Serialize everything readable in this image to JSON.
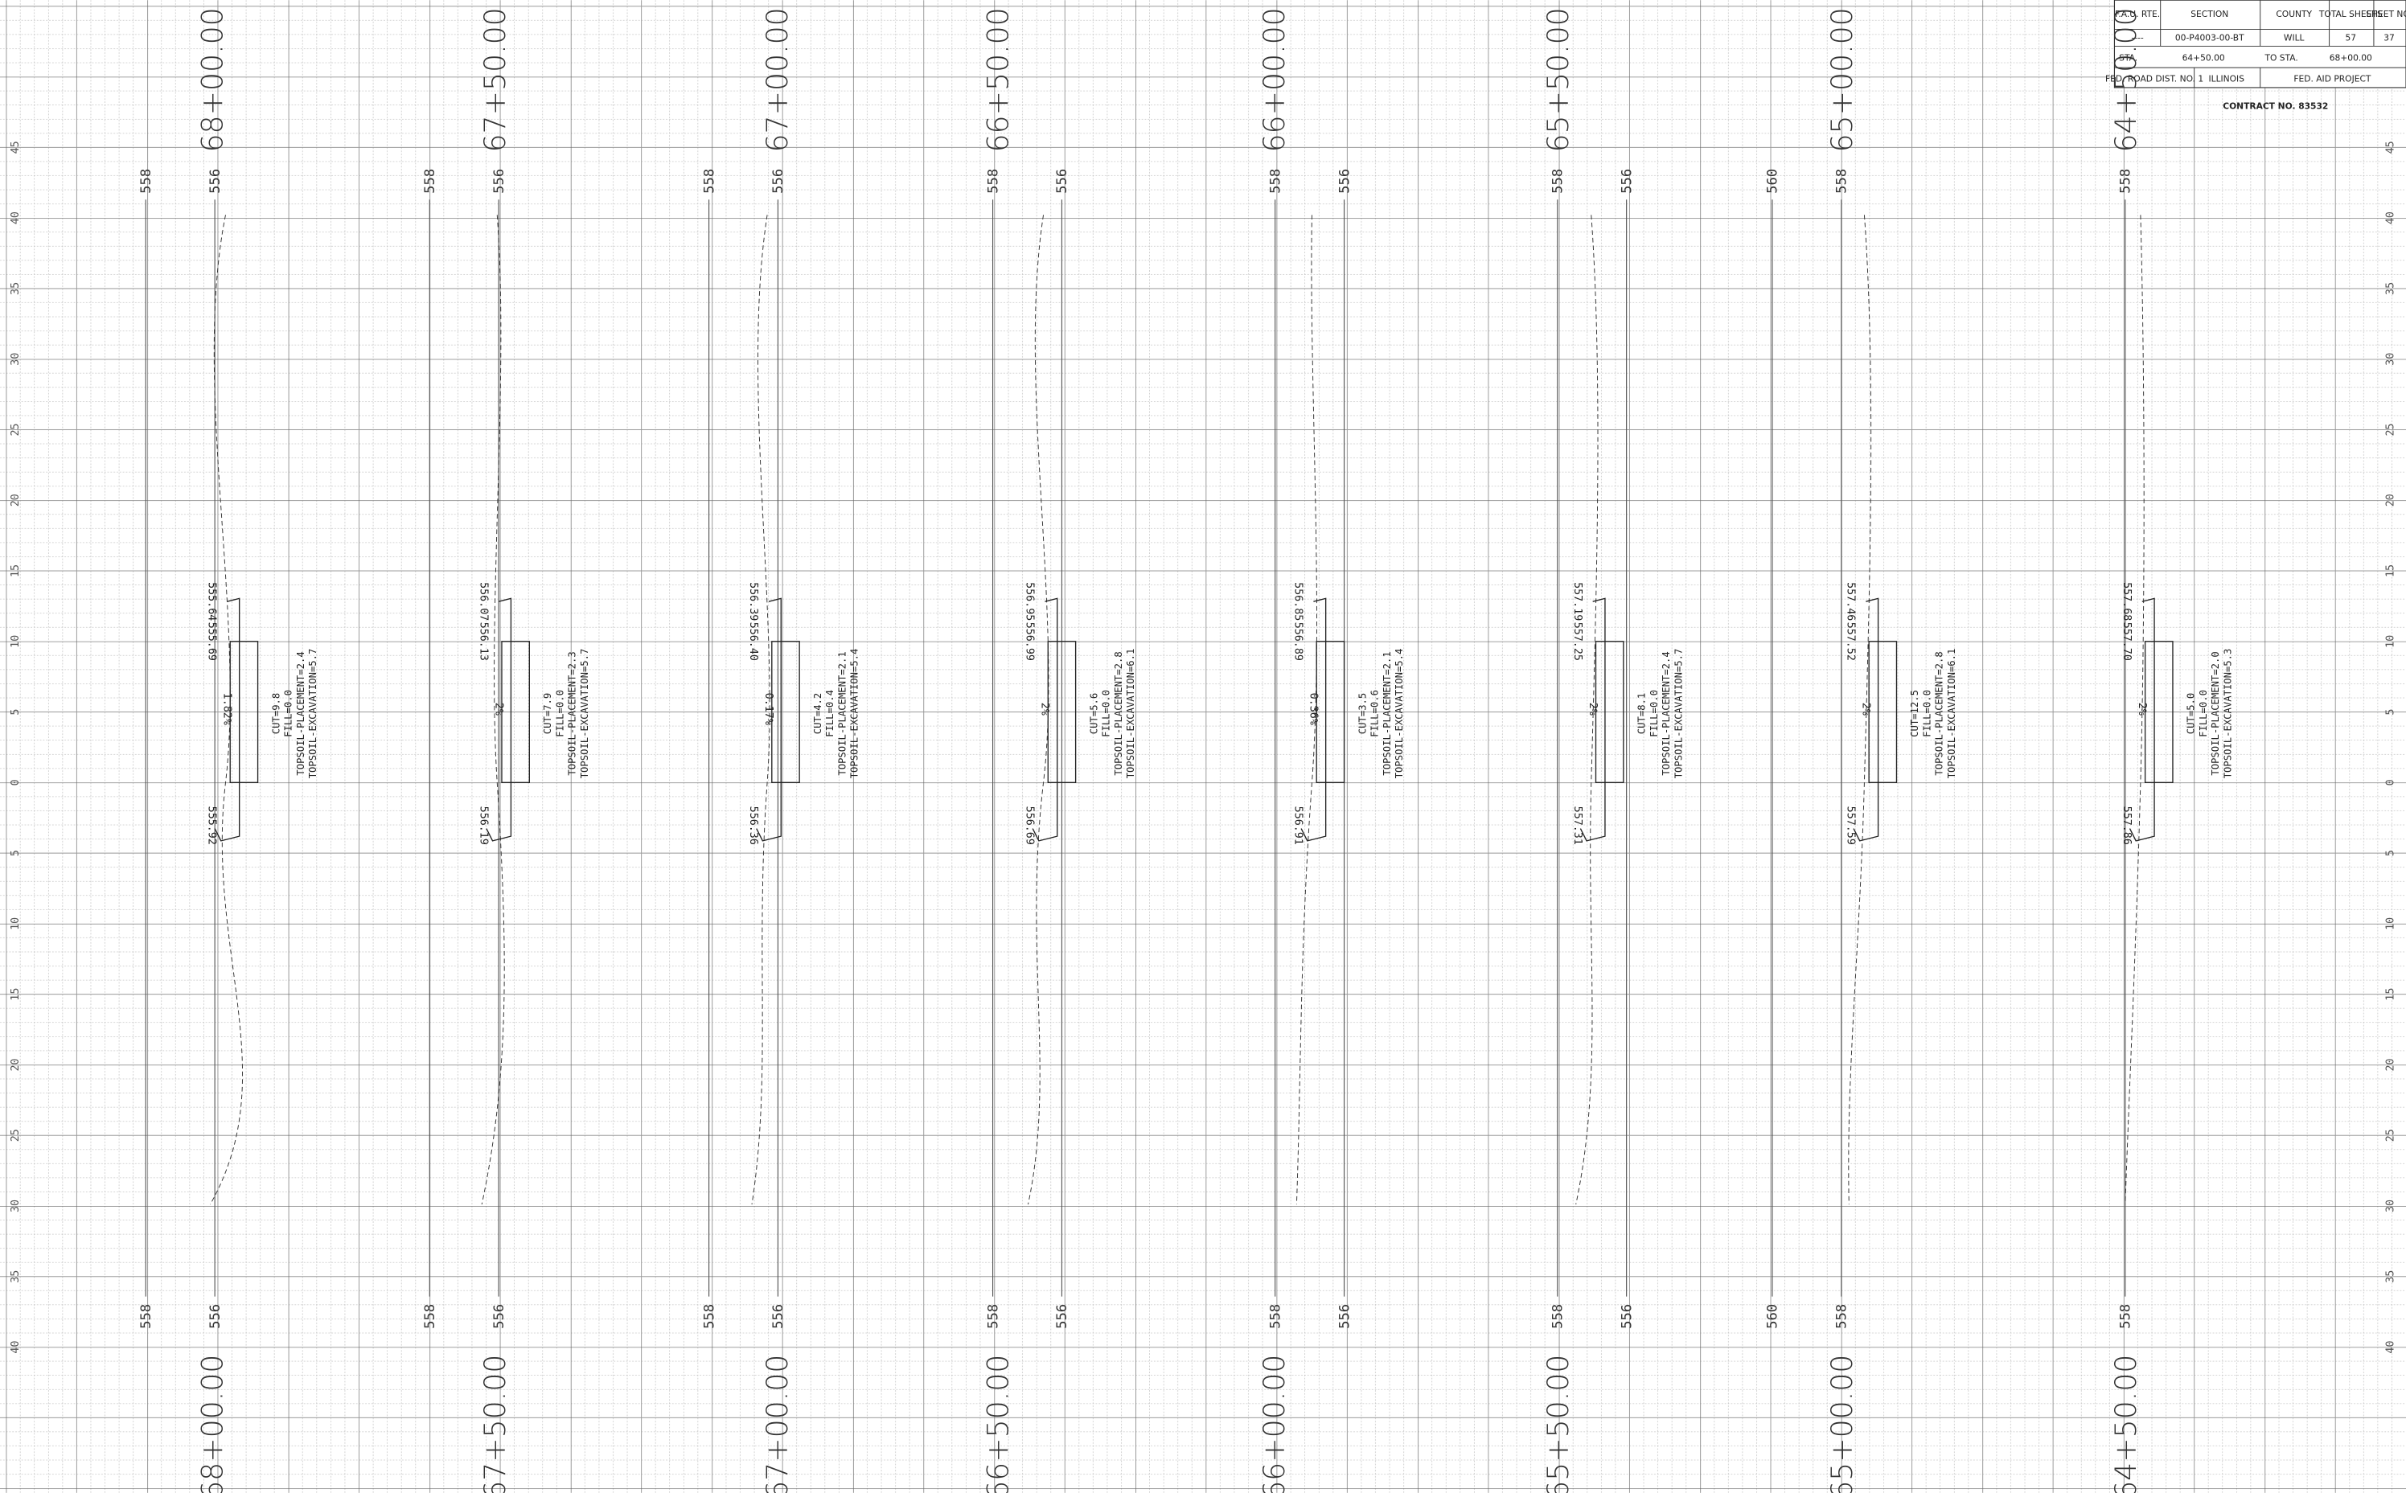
{
  "title_block": {
    "headers": [
      "F.A.U. RTE.",
      "SECTION",
      "COUNTY",
      "TOTAL SHEETS",
      "SHEET NO."
    ],
    "values": [
      "----",
      "00-P4003-00-BT",
      "WILL",
      "57",
      "37"
    ],
    "station_from_label": "STA.",
    "station_from": "64+50.00",
    "station_to_label": "TO STA.",
    "station_to": "68+00.00",
    "district": "FED. ROAD DIST. NO. 1",
    "state": "ILLINOIS",
    "project": "FED. AID PROJECT",
    "contract": "CONTRACT NO. 83532"
  },
  "offset_labels": [
    45,
    40,
    35,
    30,
    25,
    20,
    15,
    10,
    5,
    0,
    5,
    10,
    15,
    20,
    25,
    30,
    35,
    40
  ],
  "sections": [
    {
      "station": "68+00.00",
      "elevation_labels": [
        558,
        556
      ],
      "quantities": [
        "CUT=9.8",
        "FILL=0.0",
        "TOPSOIL-PLACEMENT=2.4",
        "TOPSOIL-EXCAVATION=5.7"
      ],
      "elevations": [
        "555.64",
        "555.69",
        "555.92"
      ],
      "slope": "1.82%"
    },
    {
      "station": "67+50.00",
      "elevation_labels": [
        558,
        556
      ],
      "quantities": [
        "CUT=7.9",
        "FILL=0.0",
        "TOPSOIL-PLACEMENT=2.3",
        "TOPSOIL-EXCAVATION=5.7"
      ],
      "elevations": [
        "556.07",
        "556.13",
        "556.19"
      ],
      "slope": "2%"
    },
    {
      "station": "67+00.00",
      "elevation_labels": [
        558,
        556
      ],
      "quantities": [
        "CUT=4.2",
        "FILL=0.4",
        "TOPSOIL-PLACEMENT=2.1",
        "TOPSOIL-EXCAVATION=5.4"
      ],
      "elevations": [
        "556.39",
        "556.40",
        "556.36"
      ],
      "slope": "0.17%"
    },
    {
      "station": "66+50.00",
      "elevation_labels": [
        558,
        556
      ],
      "quantities": [
        "CUT=5.6",
        "FILL=0.0",
        "TOPSOIL-PLACEMENT=2.8",
        "TOPSOIL-EXCAVATION=6.1"
      ],
      "elevations": [
        "556.95",
        "556.99",
        "556.69"
      ],
      "slope": "2%"
    },
    {
      "station": "66+00.00",
      "elevation_labels": [
        558,
        556
      ],
      "quantities": [
        "CUT=3.5",
        "FILL=0.6",
        "TOPSOIL-PLACEMENT=2.1",
        "TOPSOIL-EXCAVATION=5.4"
      ],
      "elevations": [
        "556.85",
        "556.89",
        "556.91"
      ],
      "slope": "0.36%"
    },
    {
      "station": "65+50.00",
      "elevation_labels": [
        558,
        556
      ],
      "quantities": [
        "CUT=8.1",
        "FILL=0.0",
        "TOPSOIL-PLACEMENT=2.4",
        "TOPSOIL-EXCAVATION=5.7"
      ],
      "elevations": [
        "557.19",
        "557.25",
        "557.31"
      ],
      "slope": "2%"
    },
    {
      "station": "65+00.00",
      "elevation_labels": [
        560,
        558
      ],
      "quantities": [
        "CUT=12.5",
        "FILL=0.0",
        "TOPSOIL-PLACEMENT=2.8",
        "TOPSOIL-EXCAVATION=6.1"
      ],
      "elevations": [
        "557.46",
        "557.52",
        "557.59"
      ],
      "slope": "2%"
    },
    {
      "station": "64+50.00",
      "elevation_labels": [
        558
      ],
      "quantities": [
        "CUT=5.0",
        "FILL=0.0",
        "TOPSOIL-PLACEMENT=2.0",
        "TOPSOIL-EXCAVATION=5.3"
      ],
      "elevations": [
        "557.68",
        "557.70",
        "557.86"
      ],
      "slope": "2%"
    }
  ]
}
